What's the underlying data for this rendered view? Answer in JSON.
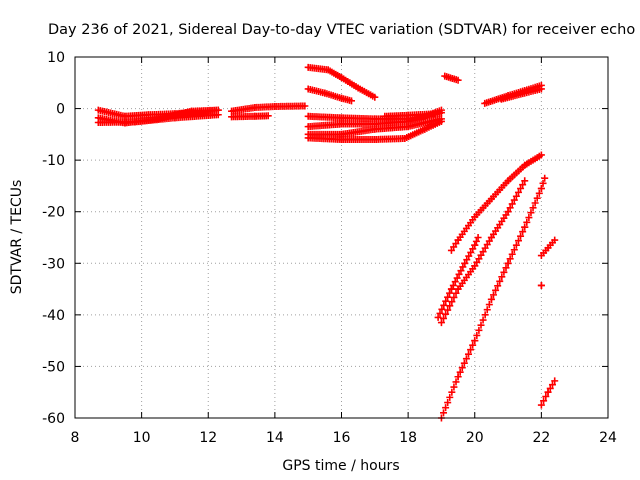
{
  "chart_data": {
    "type": "scatter",
    "title": "Day 236 of 2021, Sidereal Day-to-day VTEC variation (SDTVAR) for receiver echo",
    "xlabel": "GPS time / hours",
    "ylabel": "SDTVAR / TECUs",
    "xlim": [
      8,
      24
    ],
    "ylim": [
      -60,
      10
    ],
    "xticks": [
      8,
      10,
      12,
      14,
      16,
      18,
      20,
      22,
      24
    ],
    "yticks": [
      10,
      0,
      -10,
      -20,
      -30,
      -40,
      -50,
      -60
    ],
    "grid": true,
    "marker": "+",
    "series_color": "#ff0000",
    "tracks": [
      [
        [
          8.7,
          -0.3
        ],
        [
          9.5,
          -1.5
        ],
        [
          10.2,
          -1.2
        ],
        [
          11.0,
          -1.0
        ],
        [
          11.8,
          -0.6
        ],
        [
          12.3,
          -0.3
        ]
      ],
      [
        [
          8.7,
          -1.8
        ],
        [
          9.5,
          -2.8
        ],
        [
          10.5,
          -2.0
        ],
        [
          11.5,
          -0.5
        ],
        [
          12.3,
          -0.3
        ]
      ],
      [
        [
          8.7,
          -2.7
        ],
        [
          9.8,
          -2.6
        ],
        [
          11.0,
          -1.8
        ],
        [
          12.3,
          -1.2
        ]
      ],
      [
        [
          12.7,
          -0.5
        ],
        [
          13.4,
          0.2
        ],
        [
          14.0,
          0.4
        ],
        [
          14.9,
          0.5
        ]
      ],
      [
        [
          12.7,
          -1.6
        ],
        [
          13.4,
          -1.5
        ],
        [
          13.8,
          -1.4
        ]
      ],
      [
        [
          15.0,
          8.0
        ],
        [
          15.6,
          7.5
        ],
        [
          16.0,
          6.0
        ],
        [
          16.5,
          4.0
        ],
        [
          17.0,
          2.2
        ]
      ],
      [
        [
          15.0,
          3.8
        ],
        [
          15.5,
          3.0
        ],
        [
          16.0,
          2.0
        ],
        [
          16.3,
          1.5
        ]
      ],
      [
        [
          15.0,
          -1.5
        ],
        [
          16.0,
          -1.8
        ],
        [
          17.0,
          -2.0
        ],
        [
          18.0,
          -2.0
        ],
        [
          18.5,
          -1.5
        ],
        [
          19.0,
          -0.3
        ]
      ],
      [
        [
          15.0,
          -3.5
        ],
        [
          16.0,
          -3.0
        ],
        [
          17.0,
          -3.0
        ],
        [
          18.0,
          -2.5
        ],
        [
          19.0,
          -0.8
        ]
      ],
      [
        [
          15.0,
          -5.0
        ],
        [
          16.0,
          -5.0
        ],
        [
          17.0,
          -4.0
        ],
        [
          18.0,
          -3.5
        ],
        [
          19.0,
          -2.0
        ]
      ],
      [
        [
          15.0,
          -5.7
        ],
        [
          16.0,
          -6.0
        ],
        [
          17.0,
          -6.0
        ],
        [
          17.9,
          -5.8
        ],
        [
          18.5,
          -4.0
        ],
        [
          19.0,
          -2.5
        ]
      ],
      [
        [
          17.3,
          -1.5
        ],
        [
          18.0,
          -1.3
        ],
        [
          18.8,
          -1.0
        ]
      ],
      [
        [
          19.1,
          6.3
        ],
        [
          19.5,
          5.5
        ]
      ],
      [
        [
          20.3,
          1.0
        ],
        [
          21.0,
          2.5
        ],
        [
          21.5,
          3.5
        ],
        [
          22.0,
          4.5
        ]
      ],
      [
        [
          20.8,
          1.8
        ],
        [
          21.5,
          3.0
        ],
        [
          22.0,
          3.8
        ]
      ],
      [
        [
          19.3,
          -27.5
        ],
        [
          19.5,
          -25.5
        ],
        [
          20.0,
          -21.0
        ],
        [
          20.5,
          -17.5
        ],
        [
          21.0,
          -14.0
        ],
        [
          21.5,
          -11.0
        ],
        [
          22.0,
          -9.0
        ]
      ],
      [
        [
          19.0,
          -41.5
        ],
        [
          19.5,
          -35.0
        ],
        [
          20.0,
          -30.5
        ],
        [
          20.5,
          -25.0
        ],
        [
          21.0,
          -20.0
        ],
        [
          21.5,
          -14.0
        ]
      ],
      [
        [
          18.9,
          -40.5
        ],
        [
          19.3,
          -35.0
        ],
        [
          19.7,
          -30.0
        ],
        [
          20.0,
          -26.5
        ],
        [
          20.1,
          -25.0
        ]
      ],
      [
        [
          19.0,
          -60.0
        ],
        [
          19.5,
          -52.0
        ],
        [
          20.0,
          -45.0
        ],
        [
          20.5,
          -37.0
        ],
        [
          21.0,
          -30.0
        ],
        [
          21.5,
          -23.0
        ],
        [
          22.0,
          -15.5
        ],
        [
          22.1,
          -13.5
        ]
      ],
      [
        [
          22.0,
          -28.5
        ],
        [
          22.2,
          -27.0
        ],
        [
          22.4,
          -25.5
        ]
      ],
      [
        [
          22.0,
          -57.5
        ],
        [
          22.2,
          -55.0
        ],
        [
          22.4,
          -52.8
        ]
      ],
      [
        [
          22.0,
          -34.3
        ],
        [
          22.0,
          -34.3
        ]
      ]
    ]
  }
}
